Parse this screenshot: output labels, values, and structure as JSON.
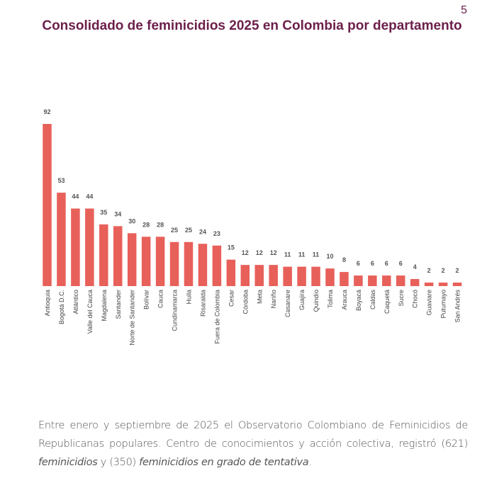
{
  "page_number": "5",
  "chart_data": {
    "type": "bar",
    "title": "Consolidado de feminicidios 2025 en Colombia por departamento",
    "xlabel": "",
    "ylabel": "",
    "ylim": [
      0,
      92
    ],
    "grid": false,
    "bar_color": "#e8605a",
    "categories": [
      "Antioquia",
      "Bogotá D.C.",
      "Atlántico",
      "Valle del Cauca",
      "Magdalena",
      "Santander",
      "Norte de Santander",
      "Bolívar",
      "Cauca",
      "Cundinamarca",
      "Huila",
      "Risaralda",
      "Fuera de Colombia",
      "Cesar",
      "Córdoba",
      "Meta",
      "Nariño",
      "Casanare",
      "Guajira",
      "Quindío",
      "Tolima",
      "Arauca",
      "Boyacá",
      "Caldas",
      "Caquetá",
      "Sucre",
      "Chocó",
      "Guaviare",
      "Putumayo",
      "San Andrés"
    ],
    "values": [
      92,
      53,
      44,
      44,
      35,
      34,
      30,
      28,
      28,
      25,
      25,
      24,
      23,
      15,
      12,
      12,
      12,
      11,
      11,
      11,
      10,
      8,
      6,
      6,
      6,
      6,
      4,
      2,
      2,
      2
    ]
  },
  "caption": {
    "part1": "Entre enero y septiembre de 2025 el Observatorio Colombiano de Feminicidios de Republicanas populares. Centro de conocimientos y acción colectiva, registró (621) ",
    "em1": "feminicidios",
    "part2": " y (350) ",
    "em2": "feminicidios en grado de tentativa",
    "part3": "."
  }
}
